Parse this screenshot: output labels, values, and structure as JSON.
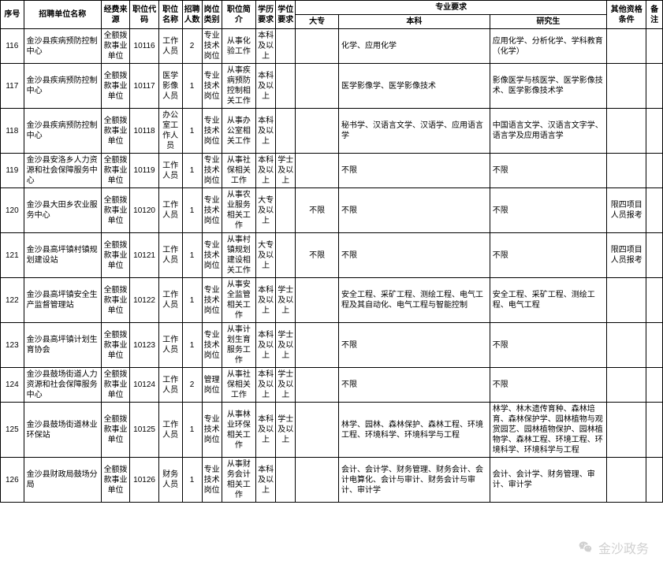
{
  "headers": {
    "seq": "序号",
    "unit": "招聘单位名称",
    "fund": "经费来源",
    "code": "职位代码",
    "posname": "职位名称",
    "count": "招聘人数",
    "type": "岗位类别",
    "desc": "职位简介",
    "edu": "学历要求",
    "degree": "学位要求",
    "major_group": "专业要求",
    "dz": "大专",
    "bk": "本科",
    "yjs": "研究生",
    "other": "其他资格条件",
    "note": "备注"
  },
  "rows": [
    {
      "seq": "116",
      "unit": "金沙县疾病预防控制中心",
      "fund": "全额拨款事业单位",
      "code": "10116",
      "posname": "工作人员",
      "count": "2",
      "type": "专业技术岗位",
      "desc": "从事化验工作",
      "edu": "本科及以上",
      "degree": "",
      "dz": "",
      "bk": "化学、应用化学",
      "yjs": "应用化学、分析化学、学科教育（化学）",
      "other": "",
      "note": ""
    },
    {
      "seq": "117",
      "unit": "金沙县疾病预防控制中心",
      "fund": "全额拨款事业单位",
      "code": "10117",
      "posname": "医学影像人员",
      "count": "1",
      "type": "专业技术岗位",
      "desc": "从事疾病预防控制相关工作",
      "edu": "本科及以上",
      "degree": "",
      "dz": "",
      "bk": "医学影像学、医学影像技术",
      "yjs": "影像医学与核医学、医学影像技术、医学影像技术学",
      "other": "",
      "note": ""
    },
    {
      "seq": "118",
      "unit": "金沙县疾病预防控制中心",
      "fund": "全额拨款事业单位",
      "code": "10118",
      "posname": "办公室工作人员",
      "count": "1",
      "type": "专业技术岗位",
      "desc": "从事办公室相关工作",
      "edu": "本科及以上",
      "degree": "",
      "dz": "",
      "bk": "秘书学、汉语言文学、汉语学、应用语言学",
      "yjs": "中国语言文学、汉语言文字学、语言学及应用语言学",
      "other": "",
      "note": ""
    },
    {
      "seq": "119",
      "unit": "金沙县安洛乡人力资源和社会保障服务中心",
      "fund": "全额拨款事业单位",
      "code": "10119",
      "posname": "工作人员",
      "count": "1",
      "type": "专业技术岗位",
      "desc": "从事社保相关工作",
      "edu": "本科及以上",
      "degree": "学士及以上",
      "dz": "",
      "bk": "不限",
      "yjs": "不限",
      "other": "",
      "note": ""
    },
    {
      "seq": "120",
      "unit": "金沙县大田乡农业服务中心",
      "fund": "全额拨款事业单位",
      "code": "10120",
      "posname": "工作人员",
      "count": "1",
      "type": "专业技术岗位",
      "desc": "从事农业服务相关工作",
      "edu": "大专及以上",
      "degree": "",
      "dz": "不限",
      "bk": "不限",
      "yjs": "不限",
      "other": "限四项目人员报考",
      "note": ""
    },
    {
      "seq": "121",
      "unit": "金沙县高坪镇村镇规划建设站",
      "fund": "全额拨款事业单位",
      "code": "10121",
      "posname": "工作人员",
      "count": "1",
      "type": "专业技术岗位",
      "desc": "从事村镇规划建设相关工作",
      "edu": "大专及以上",
      "degree": "",
      "dz": "不限",
      "bk": "不限",
      "yjs": "不限",
      "other": "限四项目人员报考",
      "note": ""
    },
    {
      "seq": "122",
      "unit": "金沙县高坪镇安全生产监督管理站",
      "fund": "全额拨款事业单位",
      "code": "10122",
      "posname": "工作人员",
      "count": "1",
      "type": "专业技术岗位",
      "desc": "从事安全监管相关工作",
      "edu": "本科及以上",
      "degree": "学士及以上",
      "dz": "",
      "bk": "安全工程、采矿工程、测绘工程、电气工程及其自动化、电气工程与智能控制",
      "yjs": "安全工程、采矿工程、测绘工程、电气工程",
      "other": "",
      "note": ""
    },
    {
      "seq": "123",
      "unit": "金沙县高坪镇计划生育协会",
      "fund": "全额拨款事业单位",
      "code": "10123",
      "posname": "工作人员",
      "count": "1",
      "type": "专业技术岗位",
      "desc": "从事计划生育服务工作",
      "edu": "本科及以上",
      "degree": "学士及以上",
      "dz": "",
      "bk": "不限",
      "yjs": "不限",
      "other": "",
      "note": ""
    },
    {
      "seq": "124",
      "unit": "金沙县鼓场街道人力资源和社会保障服务中心",
      "fund": "全额拨款事业单位",
      "code": "10124",
      "posname": "工作人员",
      "count": "2",
      "type": "管理岗位",
      "desc": "从事社保相关工作",
      "edu": "本科及以上",
      "degree": "学士及以上",
      "dz": "",
      "bk": "不限",
      "yjs": "不限",
      "other": "",
      "note": ""
    },
    {
      "seq": "125",
      "unit": "金沙县鼓场街道林业环保站",
      "fund": "全额拨款事业单位",
      "code": "10125",
      "posname": "工作人员",
      "count": "1",
      "type": "专业技术岗位",
      "desc": "从事林业环保相关工作",
      "edu": "本科及以上",
      "degree": "学士及以上",
      "dz": "",
      "bk": "林学、园林、森林保护、森林工程、环境工程、环境科学、环境科学与工程",
      "yjs": "林学、林木遗传育种、森林培育、森林保护学、园林植物与观赏园艺、园林植物保护、园林植物学、森林工程、环境工程、环境科学、环境科学与工程",
      "other": "",
      "note": ""
    },
    {
      "seq": "126",
      "unit": "金沙县财政局鼓场分局",
      "fund": "全额拨款事业单位",
      "code": "10126",
      "posname": "财务人员",
      "count": "1",
      "type": "专业技术岗位",
      "desc": "从事财务会计相关工作",
      "edu": "本科及以上",
      "degree": "",
      "dz": "",
      "bk": "会计、会计学、财务管理、财务会计、会计电算化、会计与审计、财务会计与审计、审计学",
      "yjs": "会计、会计学、财务管理、审计、审计学",
      "other": "",
      "note": ""
    }
  ],
  "watermark": "金沙政务"
}
